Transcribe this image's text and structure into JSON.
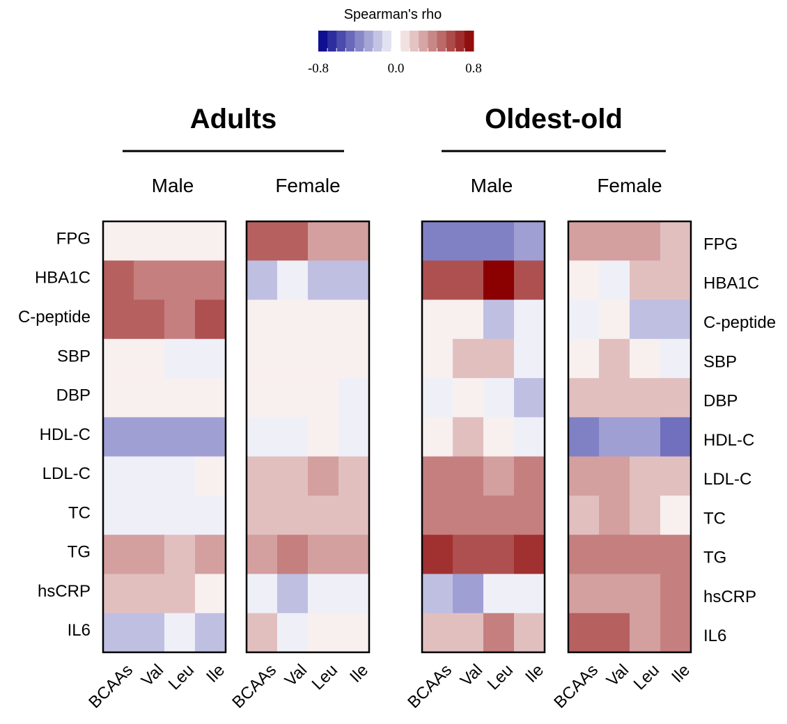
{
  "chart_data": {
    "type": "heatmap",
    "legend": {
      "title": "Spearman's rho",
      "range": [
        -0.8,
        0.8
      ],
      "ticks": [
        "-0.8",
        "0.0",
        "0.8"
      ],
      "colors": {
        "low": "#00008b",
        "mid": "#ffffff",
        "high": "#8b0000"
      },
      "placement": "top-center"
    },
    "groups": [
      {
        "label": "Adults",
        "panels": [
          "Male",
          "Female"
        ]
      },
      {
        "label": "Oldest-old",
        "panels": [
          "Male",
          "Female"
        ]
      }
    ],
    "rows": [
      "FPG",
      "HBA1C",
      "C-peptide",
      "SBP",
      "DBP",
      "HDL-C",
      "LDL-C",
      "TC",
      "TG",
      "hsCRP",
      "IL6"
    ],
    "columns": [
      "BCAAs",
      "Val",
      "Leu",
      "Ile"
    ],
    "panels": [
      {
        "group": "Adults",
        "sex": "Male",
        "values": [
          [
            0.05,
            0.05,
            0.05,
            0.05
          ],
          [
            0.5,
            0.4,
            0.4,
            0.4
          ],
          [
            0.5,
            0.5,
            0.4,
            0.55
          ],
          [
            0.05,
            0.05,
            -0.05,
            -0.05
          ],
          [
            0.05,
            0.05,
            0.05,
            0.05
          ],
          [
            -0.3,
            -0.3,
            -0.3,
            -0.3
          ],
          [
            -0.05,
            -0.05,
            -0.05,
            0.05
          ],
          [
            -0.05,
            -0.05,
            -0.05,
            -0.05
          ],
          [
            0.3,
            0.3,
            0.2,
            0.3
          ],
          [
            0.2,
            0.2,
            0.2,
            0.05
          ],
          [
            -0.2,
            -0.2,
            -0.05,
            -0.2
          ]
        ]
      },
      {
        "group": "Adults",
        "sex": "Female",
        "values": [
          [
            0.5,
            0.5,
            0.3,
            0.3
          ],
          [
            -0.2,
            -0.05,
            -0.2,
            -0.2
          ],
          [
            0.05,
            0.05,
            0.05,
            0.05
          ],
          [
            0.05,
            0.05,
            0.05,
            0.05
          ],
          [
            0.05,
            0.05,
            0.05,
            -0.05
          ],
          [
            -0.05,
            -0.05,
            0.05,
            -0.05
          ],
          [
            0.2,
            0.2,
            0.3,
            0.2
          ],
          [
            0.2,
            0.2,
            0.2,
            0.2
          ],
          [
            0.3,
            0.4,
            0.3,
            0.3
          ],
          [
            -0.05,
            -0.2,
            -0.05,
            -0.05
          ],
          [
            0.2,
            -0.05,
            0.05,
            0.05
          ]
        ]
      },
      {
        "group": "Oldest-old",
        "sex": "Male",
        "values": [
          [
            -0.4,
            -0.4,
            -0.4,
            -0.3
          ],
          [
            0.55,
            0.55,
            0.8,
            0.55
          ],
          [
            0.05,
            0.05,
            -0.2,
            -0.05
          ],
          [
            0.05,
            0.2,
            0.2,
            -0.05
          ],
          [
            -0.05,
            0.05,
            -0.05,
            -0.2
          ],
          [
            0.05,
            0.2,
            0.05,
            -0.05
          ],
          [
            0.4,
            0.4,
            0.3,
            0.4
          ],
          [
            0.4,
            0.4,
            0.4,
            0.4
          ],
          [
            0.65,
            0.55,
            0.55,
            0.65
          ],
          [
            -0.2,
            -0.3,
            -0.05,
            -0.05
          ],
          [
            0.2,
            0.2,
            0.4,
            0.2
          ]
        ]
      },
      {
        "group": "Oldest-old",
        "sex": "Female",
        "values": [
          [
            0.3,
            0.3,
            0.3,
            0.2
          ],
          [
            0.05,
            -0.05,
            0.2,
            0.2
          ],
          [
            -0.05,
            0.05,
            -0.2,
            -0.2
          ],
          [
            0.05,
            0.2,
            0.05,
            -0.05
          ],
          [
            0.2,
            0.2,
            0.2,
            0.2
          ],
          [
            -0.4,
            -0.3,
            -0.3,
            -0.45
          ],
          [
            0.3,
            0.3,
            0.2,
            0.2
          ],
          [
            0.2,
            0.3,
            0.2,
            0.05
          ],
          [
            0.4,
            0.4,
            0.4,
            0.4
          ],
          [
            0.3,
            0.3,
            0.3,
            0.4
          ],
          [
            0.5,
            0.5,
            0.3,
            0.4
          ]
        ]
      }
    ]
  }
}
